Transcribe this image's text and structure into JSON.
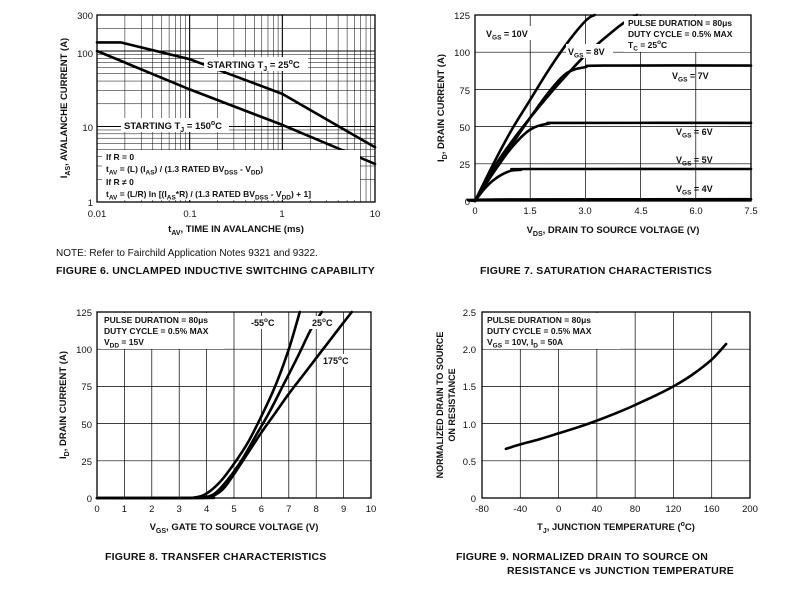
{
  "note": "NOTE:  Refer to Fairchild Application Notes 9321 and 9322.",
  "captions": {
    "fig6": "FIGURE 6.  UNCLAMPED INDUCTIVE SWITCHING CAPABILITY",
    "fig7": "FIGURE 7.  SATURATION CHARACTERISTICS",
    "fig8": "FIGURE 8.  TRANSFER CHARACTERISTICS",
    "fig9_line1": "FIGURE 9.  NORMALIZED DRAIN TO SOURCE ON",
    "fig9_line2": "RESISTANCE vs JUNCTION TEMPERATURE"
  },
  "chart_data": [
    {
      "id": "fig6",
      "type": "line",
      "xscale": "log",
      "yscale": "log",
      "xlim": [
        0.01,
        10
      ],
      "ylim": [
        1,
        300
      ],
      "xticks": [
        "0.01",
        "0.1",
        "1",
        "10"
      ],
      "yticks": [
        "1",
        "10",
        "100",
        "300"
      ],
      "xlabel_main": "t",
      "xlabel_sub": "AV",
      "xlabel_rest": ", TIME IN AVALANCHE (ms)",
      "ylabel_main": "I",
      "ylabel_sub": "AS",
      "ylabel_rest": ", AVALANCHE CURRENT (A)",
      "series": [
        {
          "name": "STARTING TJ = 25oC",
          "label_main": "STARTING T",
          "label_sub": "J",
          "label_rest": " = 25",
          "label_sup": "o",
          "label_end": "C",
          "x": [
            0.01,
            0.018,
            0.1,
            1,
            10
          ],
          "y": [
            130,
            130,
            78,
            27,
            5.3
          ]
        },
        {
          "name": "STARTING TJ = 150oC",
          "label_main": "STARTING T",
          "label_sub": "J",
          "label_rest": " = 150",
          "label_sup": "o",
          "label_end": "C",
          "x": [
            0.01,
            0.1,
            1,
            10
          ],
          "y": [
            100,
            31,
            10.5,
            3.2
          ]
        }
      ],
      "annotations": {
        "r0_cond": "If R = 0",
        "r0_eq_a": "t",
        "r0_eq_a_sub": "AV",
        "r0_eq_b": " = (L) (I",
        "r0_eq_b_sub": "AS",
        "r0_eq_c": ") / (1.3 RATED BV",
        "r0_eq_c_sub": "DSS",
        "r0_eq_d": " - V",
        "r0_eq_d_sub": "DD",
        "r0_eq_e": ")",
        "rn_cond": "If R ≠ 0",
        "rn_eq_a": "t",
        "rn_eq_a_sub": "AV",
        "rn_eq_b": " = (L/R) ln [(I",
        "rn_eq_b_sub": "AS",
        "rn_eq_c": "*R) / (1.3 RATED BV",
        "rn_eq_c_sub": "DSS",
        "rn_eq_d": " - V",
        "rn_eq_d_sub": "DD",
        "rn_eq_e": ") + 1]"
      }
    },
    {
      "id": "fig7",
      "type": "line",
      "xlim": [
        0,
        7.5
      ],
      "ylim": [
        0,
        125
      ],
      "xticks": [
        "0",
        "1.5",
        "3.0",
        "4.5",
        "6.0",
        "7.5"
      ],
      "yticks": [
        "0",
        "25",
        "50",
        "75",
        "100",
        "125"
      ],
      "xlabel_main": "V",
      "xlabel_sub": "DS",
      "xlabel_rest": ", DRAIN TO SOURCE VOLTAGE (V)",
      "ylabel_main": "I",
      "ylabel_sub": "D",
      "ylabel_rest": ", DRAIN CURRENT (A)",
      "conditions": {
        "l1": "PULSE DURATION = 80μs",
        "l2": "DUTY CYCLE = 0.5% MAX",
        "l3_main": "T",
        "l3_sub": "C",
        "l3_rest": " = 25",
        "l3_sup": "o",
        "l3_end": "C"
      },
      "series": [
        {
          "name": "VGS = 10V",
          "label_main": "V",
          "label_sub": "GS",
          "label_rest": " = 10V",
          "x": [
            0,
            0.5,
            1.0,
            1.5,
            2.0,
            2.5,
            3.0,
            3.25
          ],
          "y": [
            0,
            25,
            48,
            68,
            88,
            106,
            121,
            125
          ]
        },
        {
          "name": "VGS = 8V",
          "label_main": "V",
          "label_sub": "GS",
          "label_rest": " = 8V",
          "x": [
            0,
            0.5,
            1.0,
            1.5,
            2.0,
            2.5,
            3.0,
            3.5,
            4.0,
            4.4
          ],
          "y": [
            0,
            22,
            40,
            56,
            71,
            85,
            98,
            109,
            119,
            125
          ]
        },
        {
          "name": "VGS = 7V",
          "label_main": "V",
          "label_sub": "GS",
          "label_rest": " = 7V",
          "x": [
            0,
            0.5,
            1.0,
            1.5,
            2.0,
            2.5,
            3.0,
            3.5,
            7.5
          ],
          "y": [
            0,
            20,
            38,
            56,
            73,
            86,
            90,
            91,
            91
          ]
        },
        {
          "name": "VGS = 6V",
          "label_main": "V",
          "label_sub": "GS",
          "label_rest": " = 6V",
          "x": [
            0,
            0.5,
            1.0,
            1.5,
            2.0,
            2.5,
            7.5
          ],
          "y": [
            0,
            19,
            36,
            48,
            52,
            52.5,
            52.5
          ]
        },
        {
          "name": "VGS = 5V",
          "label_main": "V",
          "label_sub": "GS",
          "label_rest": " = 5V",
          "x": [
            0,
            0.25,
            0.5,
            0.75,
            1.0,
            1.25,
            1.5,
            7.5
          ],
          "y": [
            0,
            8,
            14,
            18,
            20.5,
            21,
            21.5,
            21.5
          ]
        },
        {
          "name": "VGS = 4V",
          "label_main": "V",
          "label_sub": "GS",
          "label_rest": " = 4V",
          "x": [
            0,
            0.5,
            7.5
          ],
          "y": [
            0,
            1,
            1.2
          ]
        }
      ]
    },
    {
      "id": "fig8",
      "type": "line",
      "xlim": [
        0,
        10
      ],
      "ylim": [
        0,
        125
      ],
      "xticks": [
        "0",
        "1",
        "2",
        "3",
        "4",
        "5",
        "6",
        "7",
        "8",
        "9",
        "10"
      ],
      "yticks": [
        "0",
        "25",
        "50",
        "75",
        "100",
        "125"
      ],
      "xlabel_main": "V",
      "xlabel_sub": "GS",
      "xlabel_rest": ", GATE TO SOURCE VOLTAGE (V)",
      "ylabel_main": "I",
      "ylabel_sub": "D",
      "ylabel_rest": ", DRAIN CURRENT (A)",
      "conditions": {
        "l1": "PULSE DURATION = 80μs",
        "l2": "DUTY CYCLE = 0.5% MAX",
        "l3_main": "V",
        "l3_sub": "DD",
        "l3_rest": " = 15V"
      },
      "series": [
        {
          "name": "-55oC",
          "label_main": "-55",
          "label_sup": "o",
          "label_end": "C",
          "x": [
            0,
            3,
            3.6,
            4.0,
            4.5,
            5.0,
            5.5,
            6.0,
            6.5,
            7.0,
            7.4
          ],
          "y": [
            0,
            0,
            0.5,
            3,
            11,
            23,
            37,
            55,
            75,
            100,
            125
          ]
        },
        {
          "name": "25oC",
          "label_main": "25",
          "label_sup": "o",
          "label_end": "C",
          "x": [
            0,
            3.5,
            3.9,
            4.3,
            4.8,
            5.3,
            5.8,
            6.3,
            6.8,
            7.3,
            7.8,
            8.2
          ],
          "y": [
            0,
            0,
            0.5,
            3,
            13,
            26,
            42,
            58,
            76,
            94,
            113,
            125
          ]
        },
        {
          "name": "175oC",
          "label_main": "175",
          "label_sup": "o",
          "label_end": "C",
          "x": [
            0,
            3.9,
            4.2,
            4.6,
            5.0,
            5.5,
            6.0,
            6.5,
            7.0,
            7.5,
            8.0,
            8.5,
            9.0,
            9.3
          ],
          "y": [
            0,
            0,
            1,
            6,
            16,
            30,
            44,
            57,
            70,
            82,
            94,
            106,
            118,
            125
          ]
        }
      ]
    },
    {
      "id": "fig9",
      "type": "line",
      "xlim": [
        -80,
        200
      ],
      "ylim": [
        0,
        2.5
      ],
      "xticks": [
        "-80",
        "-40",
        "0",
        "40",
        "80",
        "120",
        "160",
        "200"
      ],
      "yticks": [
        "0",
        "0.5",
        "1.0",
        "1.5",
        "2.0",
        "2.5"
      ],
      "xlabel_main": "T",
      "xlabel_sub": "J",
      "xlabel_rest": ", JUNCTION TEMPERATURE (",
      "xlabel_sup": "o",
      "xlabel_end": "C)",
      "ylabel_l1": "NORMALIZED DRAIN TO SOURCE",
      "ylabel_l2": "ON RESISTANCE",
      "conditions": {
        "l1": "PULSE DURATION = 80μs",
        "l2": "DUTY CYCLE = 0.5% MAX",
        "l3_main": "V",
        "l3_sub": "GS",
        "l3_rest": " = 10V, I",
        "l3_sub2": "D",
        "l3_end": " = 50A"
      },
      "series": [
        {
          "name": "RDS(on) normalized",
          "x": [
            -55,
            -40,
            -20,
            0,
            20,
            40,
            60,
            80,
            100,
            120,
            140,
            160,
            175
          ],
          "y": [
            0.66,
            0.72,
            0.79,
            0.87,
            0.95,
            1.04,
            1.14,
            1.25,
            1.37,
            1.5,
            1.66,
            1.86,
            2.07
          ]
        }
      ]
    }
  ]
}
